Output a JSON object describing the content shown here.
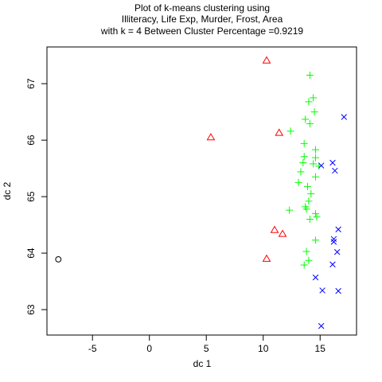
{
  "chart_data": {
    "type": "scatter",
    "title": [
      "Plot of k-means clustering using",
      "Illiteracy, Life Exp, Murder, Frost, Area",
      "with  k = 4 Between Cluster Percentage =0.9219"
    ],
    "xlabel": "dc 1",
    "ylabel": "dc 2",
    "xlim": [
      -9.0,
      18.2
    ],
    "ylim": [
      62.55,
      67.65
    ],
    "xticks": [
      -5,
      0,
      5,
      10,
      15
    ],
    "xtick_labels": [
      "-5",
      "0",
      "5",
      "10",
      "15"
    ],
    "yticks": [
      63,
      64,
      65,
      66,
      67
    ],
    "ytick_labels": [
      "63",
      "64",
      "65",
      "66",
      "67"
    ],
    "grid": false,
    "legend": "none",
    "series": [
      {
        "cluster": 1,
        "marker": "circle",
        "color": "#000000",
        "points": [
          [
            -8.0,
            63.89
          ]
        ]
      },
      {
        "cluster": 2,
        "marker": "triangle",
        "color": "#ff0000",
        "points": [
          [
            10.3,
            67.41
          ],
          [
            5.4,
            66.05
          ],
          [
            11.4,
            66.13
          ],
          [
            11.0,
            64.41
          ],
          [
            11.7,
            64.34
          ],
          [
            10.3,
            63.9
          ]
        ]
      },
      {
        "cluster": 3,
        "marker": "plus",
        "color": "#00ff00",
        "points": [
          [
            14.1,
            67.15
          ],
          [
            14.4,
            66.75
          ],
          [
            14.0,
            66.68
          ],
          [
            14.5,
            66.5
          ],
          [
            13.7,
            66.37
          ],
          [
            14.1,
            66.29
          ],
          [
            12.4,
            66.16
          ],
          [
            13.6,
            65.94
          ],
          [
            14.6,
            65.83
          ],
          [
            13.6,
            65.71
          ],
          [
            14.6,
            65.69
          ],
          [
            13.5,
            65.6
          ],
          [
            14.4,
            65.58
          ],
          [
            14.9,
            65.54
          ],
          [
            13.3,
            65.44
          ],
          [
            14.6,
            65.35
          ],
          [
            13.1,
            65.25
          ],
          [
            13.9,
            65.18
          ],
          [
            14.2,
            65.05
          ],
          [
            14.0,
            64.92
          ],
          [
            13.7,
            64.82
          ],
          [
            13.8,
            64.78
          ],
          [
            12.3,
            64.76
          ],
          [
            14.6,
            64.7
          ],
          [
            14.7,
            64.64
          ],
          [
            14.1,
            64.6
          ],
          [
            14.6,
            64.23
          ],
          [
            13.8,
            64.03
          ],
          [
            14.0,
            63.87
          ],
          [
            13.6,
            63.79
          ]
        ]
      },
      {
        "cluster": 4,
        "marker": "cross",
        "color": "#0000ff",
        "points": [
          [
            17.1,
            66.41
          ],
          [
            16.1,
            65.6
          ],
          [
            15.1,
            65.55
          ],
          [
            16.3,
            65.46
          ],
          [
            16.6,
            64.42
          ],
          [
            16.2,
            64.25
          ],
          [
            16.2,
            64.2
          ],
          [
            16.5,
            64.02
          ],
          [
            16.1,
            63.8
          ],
          [
            14.6,
            63.57
          ],
          [
            15.2,
            63.34
          ],
          [
            16.6,
            63.33
          ],
          [
            15.1,
            62.71
          ]
        ]
      }
    ]
  }
}
